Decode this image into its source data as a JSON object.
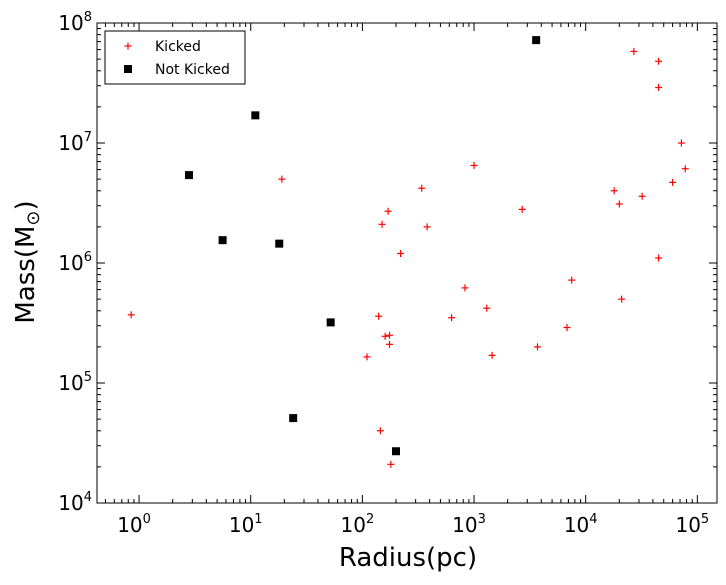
{
  "chart_data": {
    "type": "scatter",
    "xlabel": "Radius(pc)",
    "ylabel": {
      "main": "Mass(M",
      "sub": "⊙",
      "close": ")"
    },
    "x_scale": "log",
    "y_scale": "log",
    "xlim": [
      0.42,
      150000
    ],
    "ylim": [
      10000,
      100000000
    ],
    "legend_position": "top-left",
    "grid": false,
    "x_ticks": [
      {
        "value": 1,
        "base": "10",
        "exp": "0"
      },
      {
        "value": 10,
        "base": "10",
        "exp": "1"
      },
      {
        "value": 100,
        "base": "10",
        "exp": "2"
      },
      {
        "value": 1000,
        "base": "10",
        "exp": "3"
      },
      {
        "value": 10000,
        "base": "10",
        "exp": "4"
      },
      {
        "value": 100000,
        "base": "10",
        "exp": "5"
      }
    ],
    "y_ticks": [
      {
        "value": 10000,
        "base": "10",
        "exp": "4"
      },
      {
        "value": 100000,
        "base": "10",
        "exp": "5"
      },
      {
        "value": 1000000,
        "base": "10",
        "exp": "6"
      },
      {
        "value": 10000000,
        "base": "10",
        "exp": "7"
      },
      {
        "value": 100000000,
        "base": "10",
        "exp": "8"
      }
    ],
    "series": [
      {
        "name": "Kicked",
        "marker": "plus",
        "color": "#ff0000",
        "points": [
          [
            0.85,
            370000
          ],
          [
            19,
            5000000
          ],
          [
            110,
            165000
          ],
          [
            140,
            360000
          ],
          [
            145,
            40000
          ],
          [
            150,
            2100000
          ],
          [
            160,
            245000
          ],
          [
            170,
            2700000
          ],
          [
            175,
            250000
          ],
          [
            175,
            210000
          ],
          [
            180,
            21000
          ],
          [
            220,
            1200000
          ],
          [
            340,
            4200000
          ],
          [
            380,
            2000000
          ],
          [
            630,
            350000
          ],
          [
            830,
            620000
          ],
          [
            1000,
            6500000
          ],
          [
            1300,
            420000
          ],
          [
            1450,
            170000
          ],
          [
            2700,
            2800000
          ],
          [
            3700,
            200000
          ],
          [
            6800,
            290000
          ],
          [
            7500,
            720000
          ],
          [
            18000,
            4000000
          ],
          [
            20000,
            3100000
          ],
          [
            21000,
            500000
          ],
          [
            27000,
            58000000
          ],
          [
            32000,
            3600000
          ],
          [
            45000,
            48000000
          ],
          [
            45000,
            29000000
          ],
          [
            45000,
            1100000
          ],
          [
            60000,
            4700000
          ],
          [
            72000,
            10000000
          ],
          [
            78000,
            6100000
          ]
        ]
      },
      {
        "name": "Not Kicked",
        "marker": "square",
        "color": "#000000",
        "points": [
          [
            2.8,
            5400000
          ],
          [
            5.6,
            1550000
          ],
          [
            11,
            17000000
          ],
          [
            18,
            1450000
          ],
          [
            24,
            51000
          ],
          [
            52,
            320000
          ],
          [
            200,
            27000
          ],
          [
            3600,
            72000000
          ]
        ]
      }
    ]
  }
}
